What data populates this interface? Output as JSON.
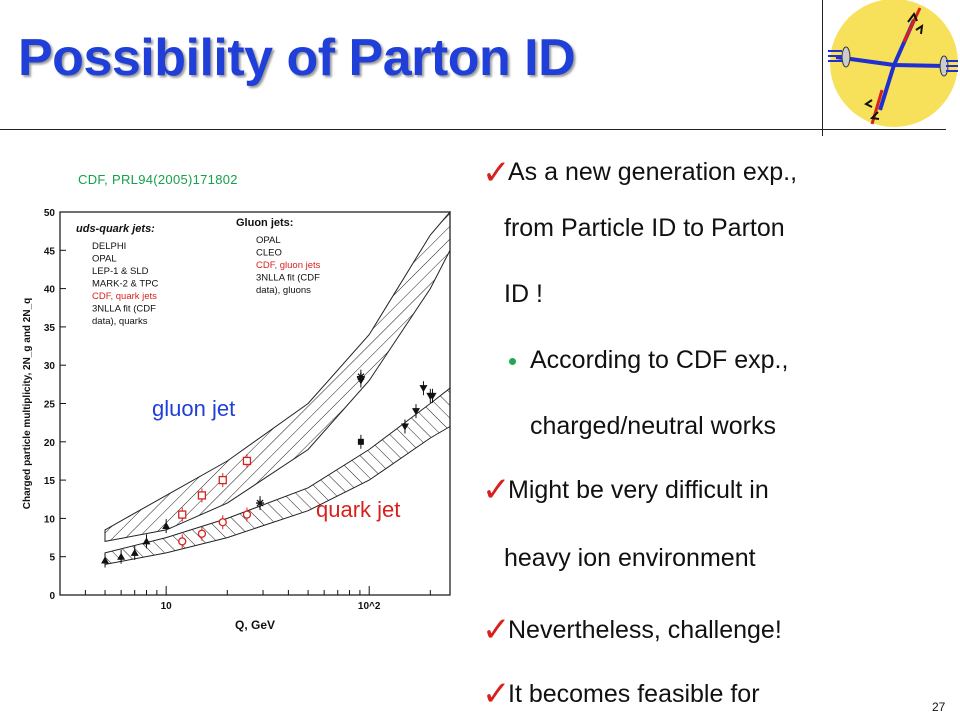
{
  "slide": {
    "title": "Possibility of Parton ID",
    "citation": "CDF, PRL94(2005)171802",
    "page_number": "27",
    "callouts": {
      "gluon": "gluon jet",
      "quark": "quark jet"
    },
    "bullets": [
      {
        "level": 1,
        "lines": [
          "As a new generation exp.,",
          "from Particle ID to Parton",
          "ID !"
        ]
      },
      {
        "level": 2,
        "lines": [
          "According to CDF exp.,",
          "charged/neutral works"
        ]
      },
      {
        "level": 1,
        "lines": [
          "Might be very difficult in",
          "heavy ion environment"
        ]
      },
      {
        "level": 1,
        "lines": [
          "Nevertheless, challenge!"
        ]
      },
      {
        "level": 1,
        "lines": [
          "It becomes feasible for"
        ]
      }
    ],
    "colors": {
      "title": "#1f3fd8",
      "check": "#d8211f",
      "sub_bullet": "#1ea84f",
      "citation": "#15a04a"
    }
  },
  "chart_data": {
    "type": "scatter",
    "xlabel": "Q, GeV",
    "ylabel": "Charged particle multiplicity, 2N_g and 2N_q",
    "xscale": "log",
    "xlim": [
      3,
      250
    ],
    "ylim": [
      0,
      50
    ],
    "yticks": [
      0,
      5,
      10,
      15,
      20,
      25,
      30,
      35,
      40,
      45,
      50
    ],
    "xtick_labels": [
      "10",
      "10^2"
    ],
    "legend_left_title": "uds-quark jets:",
    "legend_left": [
      "DELPHI",
      "OPAL",
      "LEP-1 & SLD",
      "MARK-2 & TPC",
      "CDF, quark jets",
      "3NLLA fit (CDF",
      "data), quarks"
    ],
    "legend_right_title": "Gluon jets:",
    "legend_right": [
      "OPAL",
      "CLEO",
      "CDF, gluon jets",
      "3NLLA fit (CDF",
      "data), gluons"
    ],
    "series": [
      {
        "name": "CDF, gluon jets",
        "x": [
          12,
          15,
          19,
          25
        ],
        "y": [
          10.5,
          13,
          15,
          17.5
        ]
      },
      {
        "name": "CDF, quark jets",
        "x": [
          12,
          15,
          19,
          25
        ],
        "y": [
          7,
          8,
          9.5,
          10.5
        ]
      },
      {
        "name": "OPAL",
        "x": [
          91,
          150,
          170,
          185,
          200,
          205
        ],
        "y": [
          28,
          22,
          24,
          27,
          26,
          26
        ]
      },
      {
        "name": "CLEO",
        "x": [
          5,
          6,
          7,
          8,
          10
        ],
        "y": [
          4.5,
          5,
          5.5,
          7,
          9
        ]
      },
      {
        "name": "LEP-1 & SLD",
        "x": [
          91
        ],
        "y": [
          20
        ]
      },
      {
        "name": "MARK-2 & TPC",
        "x": [
          29,
          91
        ],
        "y": [
          12,
          28.5
        ]
      }
    ],
    "bands": [
      {
        "name": "3NLLA fit (CDF data), gluons",
        "x": [
          5,
          10,
          20,
          50,
          100,
          200,
          250
        ],
        "lo": [
          7,
          8.5,
          12,
          19,
          28,
          40,
          45
        ],
        "hi": [
          8.5,
          13,
          17.5,
          25,
          34,
          47,
          50
        ]
      },
      {
        "name": "3NLLA fit (CDF data), quarks",
        "x": [
          5,
          10,
          20,
          50,
          100,
          200,
          250
        ],
        "lo": [
          4,
          5.5,
          7.5,
          11,
          15,
          20.5,
          22
        ],
        "hi": [
          5.5,
          7.5,
          10,
          14,
          19,
          25,
          27
        ]
      }
    ]
  }
}
